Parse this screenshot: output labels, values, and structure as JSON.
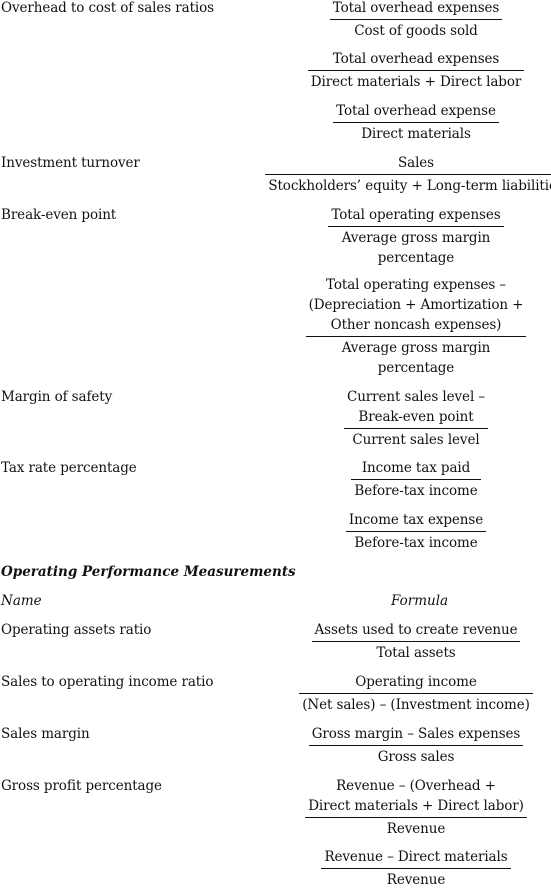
{
  "rows_top": [
    {
      "name": "Overhead to cost of sales ratios",
      "formulas": [
        {
          "num": [
            "Total overhead expenses"
          ],
          "den": [
            "Cost of goods sold"
          ]
        },
        {
          "num": [
            "Total overhead expenses"
          ],
          "den": [
            "Direct materials + Direct labor"
          ]
        },
        {
          "num": [
            "Total overhead expense"
          ],
          "den": [
            "Direct materials"
          ]
        }
      ]
    },
    {
      "name": "Investment turnover",
      "formulas": [
        {
          "num": [
            "Sales"
          ],
          "den": [
            "Stockholders’ equity + Long-term liabilities"
          ]
        }
      ]
    },
    {
      "name": "Break-even point",
      "formulas": [
        {
          "num": [
            "Total operating expenses"
          ],
          "den": [
            "Average gross margin",
            "percentage"
          ]
        },
        {
          "num": [
            "Total operating expenses –",
            "(Depreciation + Amortization +",
            "Other noncash expenses)"
          ],
          "den": [
            "Average gross margin",
            "percentage"
          ]
        }
      ]
    },
    {
      "name": "Margin of safety",
      "formulas": [
        {
          "num": [
            "Current sales level –",
            "Break-even point"
          ],
          "den": [
            "Current sales level"
          ]
        }
      ]
    },
    {
      "name": "Tax rate percentage",
      "formulas": [
        {
          "num": [
            "Income tax paid"
          ],
          "den": [
            "Before-tax income"
          ]
        },
        {
          "num": [
            "Income tax expense"
          ],
          "den": [
            "Before-tax income"
          ]
        }
      ]
    }
  ],
  "section": {
    "title": "Operating Performance Measurements",
    "col_name": "Name",
    "col_formula": "Formula"
  },
  "rows_bottom": [
    {
      "name": "Operating assets ratio",
      "formulas": [
        {
          "num": [
            "Assets used to create revenue"
          ],
          "den": [
            "Total assets"
          ]
        }
      ]
    },
    {
      "name": "Sales to operating income ratio",
      "formulas": [
        {
          "num": [
            "Operating income"
          ],
          "den": [
            "(Net sales) – (Investment income)"
          ]
        }
      ]
    },
    {
      "name": "Sales margin",
      "formulas": [
        {
          "num": [
            "Gross margin – Sales expenses"
          ],
          "den": [
            "Gross sales"
          ]
        }
      ]
    },
    {
      "name": "Gross profit percentage",
      "formulas": [
        {
          "num": [
            "Revenue – (Overhead +",
            "Direct materials + Direct labor)"
          ],
          "den": [
            "Revenue"
          ]
        },
        {
          "num": [
            "Revenue – Direct materials"
          ],
          "den": [
            "Revenue"
          ]
        }
      ]
    }
  ]
}
